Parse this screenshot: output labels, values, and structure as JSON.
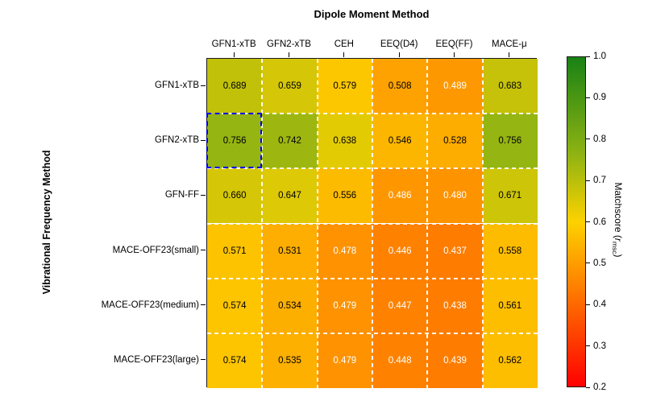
{
  "chart_data": {
    "type": "heatmap",
    "title": "",
    "xlabel": "Dipole Moment Method",
    "ylabel": "Vibrational Frequency Method",
    "columns": [
      "GFN1-xTB",
      "GFN2-xTB",
      "CEH",
      "EEQ(D4)",
      "EEQ(FF)",
      "MACE-μ"
    ],
    "rows": [
      "GFN1-xTB",
      "GFN2-xTB",
      "GFN-FF",
      "MACE-OFF23(small)",
      "MACE-OFF23(medium)",
      "MACE-OFF23(large)"
    ],
    "values": [
      [
        0.689,
        0.659,
        0.579,
        0.508,
        0.489,
        0.683
      ],
      [
        0.756,
        0.742,
        0.638,
        0.546,
        0.528,
        0.756
      ],
      [
        0.66,
        0.647,
        0.556,
        0.486,
        0.48,
        0.671
      ],
      [
        0.571,
        0.531,
        0.478,
        0.446,
        0.437,
        0.558
      ],
      [
        0.574,
        0.534,
        0.479,
        0.447,
        0.438,
        0.561
      ],
      [
        0.574,
        0.535,
        0.479,
        0.448,
        0.439,
        0.562
      ]
    ],
    "value_decimals": 3,
    "vmin": 0.2,
    "vmax": 1.0,
    "grid": true,
    "legend_position": "right-colorbar",
    "colorbar": {
      "label_prefix": "Matchscore (",
      "label_symbol": "r",
      "label_subscript": "msc",
      "label_suffix": ")",
      "ticks": [
        1.0,
        0.9,
        0.8,
        0.7,
        0.6,
        0.5,
        0.4,
        0.3,
        0.2
      ]
    },
    "colormap_stops": [
      {
        "f": 0.0,
        "color": [
          255,
          0,
          0
        ]
      },
      {
        "f": 0.5,
        "color": [
          253,
          210,
          0
        ]
      },
      {
        "f": 0.7,
        "color": [
          145,
          180,
          18
        ]
      },
      {
        "f": 1.0,
        "color": [
          25,
          130,
          20
        ]
      }
    ],
    "text_color_threshold": 0.5,
    "text_color_low": "#ffffff",
    "text_color_high": "#000000",
    "highlight_cell": {
      "row": 1,
      "col": 0,
      "border_color": "#0000ee"
    },
    "grid_line_color": "#ffffff",
    "border_color": "#1a1a1a"
  }
}
